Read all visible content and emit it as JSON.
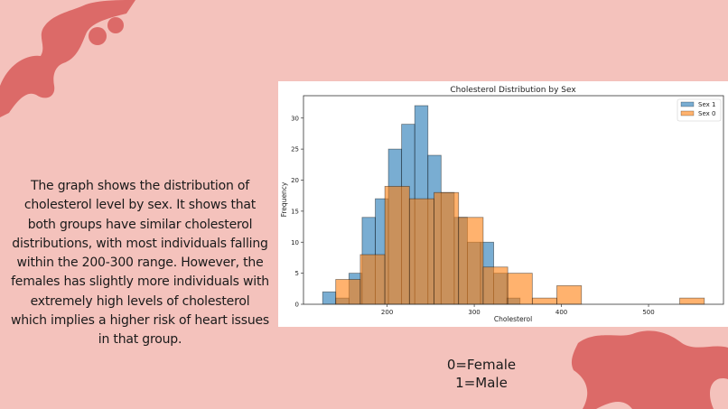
{
  "slide": {
    "paragraph_lines": [
      "The graph shows the distribution of",
      "cholesterol level by sex. It shows that",
      "both groups have similar cholesterol",
      "distributions, with most individuals falling",
      "within the 200-300 range. However, the",
      "females has slightly more individuals with",
      "extremely high levels of cholesterol",
      "which implies a higher risk of heart issues",
      "in that group."
    ],
    "key_lines": [
      "0=Female",
      "1=Male"
    ],
    "background_color": "#f4c2bc",
    "decoration_color": "#d9605e"
  },
  "chart_data": {
    "type": "bar",
    "subtype": "histogram",
    "title": "Cholesterol Distribution by Sex",
    "xlabel": "Cholesterol",
    "ylabel": "Frequency",
    "xlim": [
      104,
      586
    ],
    "ylim": [
      0,
      33.6
    ],
    "xticks": [
      200,
      300,
      400,
      500
    ],
    "yticks": [
      0,
      5,
      10,
      15,
      20,
      25,
      30
    ],
    "grid": false,
    "legend_position": "top-right",
    "series": [
      {
        "name": "Sex 1",
        "color": "#1f77b4",
        "bin_edges": [
          126,
          141.1,
          156.2,
          171.3,
          186.4,
          201.5,
          216.6,
          231.7,
          246.8,
          261.9,
          277,
          292.1,
          307.2,
          322.3,
          337.4,
          352.5
        ],
        "counts": [
          2,
          1,
          5,
          14,
          17,
          25,
          29,
          32,
          24,
          18,
          14,
          10,
          10,
          5,
          1
        ]
      },
      {
        "name": "Sex 0",
        "color": "#ff7f0e",
        "bin_edges": [
          141,
          169.2,
          197.4,
          225.6,
          253.8,
          282,
          310.2,
          338.4,
          366.6,
          394.8,
          423,
          451.2,
          479.4,
          507.6,
          535.8,
          564
        ],
        "counts": [
          4,
          8,
          19,
          17,
          18,
          14,
          6,
          5,
          1,
          3,
          0,
          0,
          0,
          0,
          1
        ]
      }
    ]
  }
}
